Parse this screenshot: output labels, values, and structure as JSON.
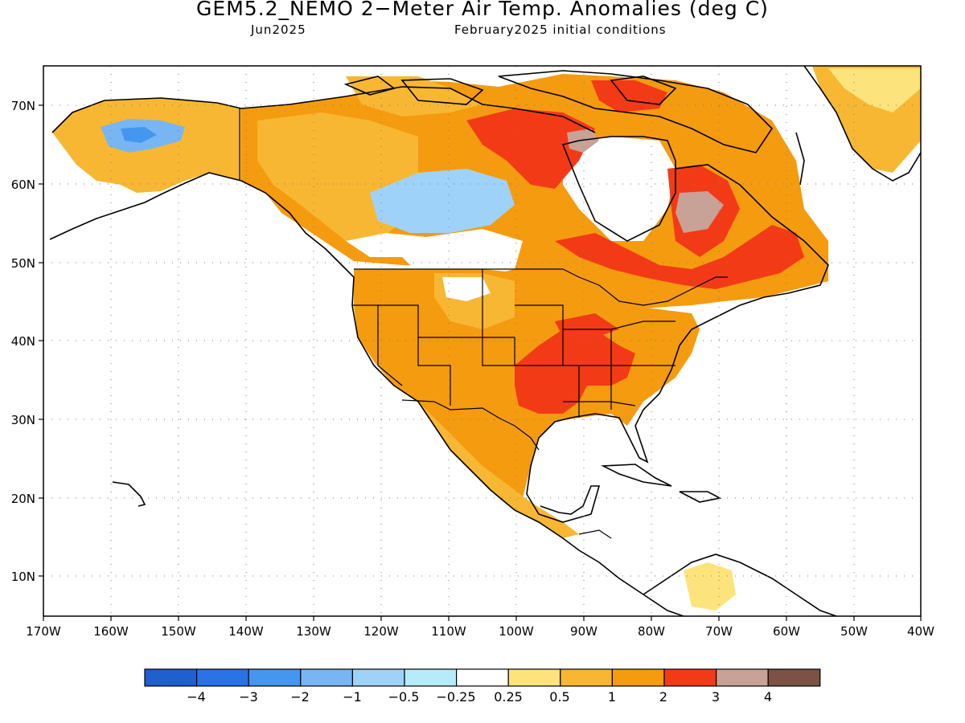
{
  "title": "GEM5.2_NEMO 2−Meter Air Temp. Anomalies (deg C)",
  "subtitle_left": "Jun2025",
  "subtitle_right": "February2025 initial conditions",
  "lat_labels": [
    "70N",
    "60N",
    "50N",
    "40N",
    "30N",
    "20N",
    "10N"
  ],
  "lon_labels": [
    "170W",
    "160W",
    "150W",
    "140W",
    "130W",
    "120W",
    "110W",
    "100W",
    "90W",
    "80W",
    "70W",
    "60W",
    "50W",
    "40W"
  ],
  "legend": {
    "colors": [
      "#1f5fce",
      "#2a73e6",
      "#4596ee",
      "#78b6f3",
      "#9fd2f9",
      "#b4ecfa",
      "#ffffff",
      "#fde37c",
      "#f7b733",
      "#f59b0f",
      "#f33a16",
      "#c8a197",
      "#7b5243"
    ],
    "labels": [
      "−4",
      "−3",
      "−2",
      "−1",
      "−0.5",
      "−0.25",
      "0.25",
      "0.5",
      "1",
      "2",
      "3",
      "4"
    ]
  }
}
